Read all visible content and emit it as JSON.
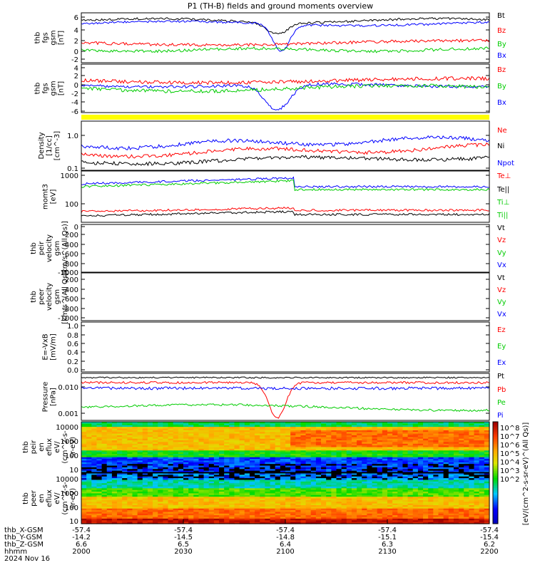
{
  "title": "P1 (TH-B) fields and ground moments overview",
  "panels": [
    {
      "ylabel": [
        "thb",
        "fgs",
        "gsm",
        "[nT]"
      ],
      "ticks": [
        "6",
        "4",
        "2",
        "0",
        "-2"
      ],
      "legend": [
        {
          "text": "Bt",
          "color": "#000000"
        },
        {
          "text": "Bz",
          "color": "#ff0000"
        },
        {
          "text": "By",
          "color": "#00cc00"
        },
        {
          "text": "Bx",
          "color": "#0000ff"
        }
      ]
    },
    {
      "ylabel": [
        "thb",
        "fgs",
        "gsm",
        "[nT]"
      ],
      "ticks": [
        "4",
        "2",
        "0",
        "-2",
        "-4",
        "-6"
      ],
      "legend": [
        {
          "text": "Bz",
          "color": "#ff0000"
        },
        {
          "text": "By",
          "color": "#00cc00"
        },
        {
          "text": "Bx",
          "color": "#0000ff"
        }
      ]
    },
    {
      "ylabel": [
        "Density",
        "[1/cc]",
        "[cm^-3]"
      ],
      "ticks": [
        "1.0",
        "0.1"
      ],
      "legend": [
        {
          "text": "Ne",
          "color": "#ff0000"
        },
        {
          "text": "Ni",
          "color": "#000000"
        },
        {
          "text": "Npot",
          "color": "#0000ff"
        }
      ]
    },
    {
      "ylabel": [
        "momt3",
        "[eV]"
      ],
      "ticks": [
        "1000",
        "100"
      ],
      "legend": [
        {
          "text": "Te⊥",
          "color": "#ff0000"
        },
        {
          "text": "Te||",
          "color": "#000000"
        },
        {
          "text": "Ti⊥",
          "color": "#00cc00"
        },
        {
          "text": "Ti||",
          "color": "#00cc00"
        }
      ]
    },
    {
      "ylabel": [
        "thb",
        "peir",
        "velocity",
        "gsm",
        "[km/s^(All Qs)]"
      ],
      "ticks": [
        "0",
        "-200",
        "-400",
        "-600",
        "-800",
        "-1000",
        "-1200",
        "-1400"
      ],
      "legend": [
        {
          "text": "Vt",
          "color": "#000000"
        },
        {
          "text": "Vz",
          "color": "#ff0000"
        },
        {
          "text": "Vy",
          "color": "#00cc00"
        },
        {
          "text": "Vx",
          "color": "#0000ff"
        }
      ]
    },
    {
      "ylabel": [
        "thb",
        "peer",
        "velocity",
        "gsm",
        "[km/s^(All Qs)]"
      ],
      "ticks": [
        "-200",
        "-400",
        "-600",
        "-800",
        "-1000",
        "-1200",
        "-1400"
      ],
      "legend": [
        {
          "text": "Vt",
          "color": "#000000"
        },
        {
          "text": "Vz",
          "color": "#ff0000"
        },
        {
          "text": "Vy",
          "color": "#00cc00"
        },
        {
          "text": "Vx",
          "color": "#0000ff"
        }
      ]
    },
    {
      "ylabel": [
        "E=-VxB",
        "[mV/m]"
      ],
      "ticks": [
        "1.0",
        "0.8",
        "0.6",
        "0.4",
        "0.2",
        "0.0"
      ],
      "legend": [
        {
          "text": "Ez",
          "color": "#ff0000"
        },
        {
          "text": "Ey",
          "color": "#00cc00"
        },
        {
          "text": "Ex",
          "color": "#0000ff"
        }
      ]
    },
    {
      "ylabel": [
        "Pressure",
        "[nPa]"
      ],
      "ticks": [
        "0.010",
        "0.001"
      ],
      "legend": [
        {
          "text": "Pt",
          "color": "#000000"
        },
        {
          "text": "Pb",
          "color": "#ff0000"
        },
        {
          "text": "Pe",
          "color": "#00cc00"
        },
        {
          "text": "Pi",
          "color": "#0000ff"
        }
      ]
    },
    {
      "ylabel": [
        "thb",
        "peir",
        "en",
        "eflux",
        "eV/",
        "(cm^2-s-",
        "sr-eV)"
      ],
      "ticks": [
        "10000",
        "1000",
        "100",
        "10"
      ]
    },
    {
      "ylabel": [
        "thb",
        "peer",
        "en",
        "eflux",
        "eV/",
        "(cm^2-s-",
        "sr-eV)"
      ],
      "ticks": [
        "10000",
        "1000",
        "100",
        "10"
      ]
    }
  ],
  "colorbar": {
    "ticks": [
      "10^8",
      "10^7",
      "10^6",
      "10^5",
      "10^4",
      "10^3",
      "10^2"
    ],
    "label": "[eV/(cm^2-s-sr-eV)^(All Qs)]"
  },
  "xaxis": {
    "row_labels": [
      "thb_X-GSM",
      "thb_Y-GSM",
      "thb_Z-GSM",
      "hhmm",
      "2024 Nov 16"
    ],
    "columns": [
      {
        "x": "-57.4",
        "y": "-14.2",
        "z": "6.6",
        "t": "2000"
      },
      {
        "x": "-57.4",
        "y": "-14.5",
        "z": "6.5",
        "t": "2030"
      },
      {
        "x": "-57.4",
        "y": "-14.8",
        "z": "6.4",
        "t": "2100"
      },
      {
        "x": "-57.4",
        "y": "-15.1",
        "z": "6.3",
        "t": "2130"
      },
      {
        "x": "-57.4",
        "y": "-15.4",
        "z": "6.2",
        "t": "2200"
      }
    ]
  },
  "chart_data": {
    "type": "line",
    "title": "P1 (TH-B) fields and ground moments overview",
    "x_unit": "hhmm",
    "x": [
      "2000",
      "2030",
      "2100",
      "2130",
      "2200"
    ],
    "series": [
      {
        "panel": "fgs",
        "name": "Bt",
        "values": [
          5.5,
          6.0,
          3.5,
          6.2,
          6.0
        ]
      },
      {
        "panel": "fgs",
        "name": "Bz",
        "values": [
          2.0,
          1.5,
          1.0,
          1.8,
          2.5
        ]
      },
      {
        "panel": "fgs",
        "name": "By",
        "values": [
          0.5,
          0.0,
          0.2,
          -0.5,
          0.0
        ]
      },
      {
        "panel": "fgs",
        "name": "Bx",
        "values": [
          5.0,
          5.5,
          -0.5,
          5.5,
          4.5
        ]
      },
      {
        "panel": "fgs2",
        "name": "Bx",
        "values": [
          0.5,
          0.0,
          -6.0,
          0.5,
          0.8
        ]
      },
      {
        "panel": "fgs2",
        "name": "By",
        "values": [
          -0.2,
          -1.5,
          -0.5,
          -1.5,
          -2.0
        ]
      },
      {
        "panel": "fgs2",
        "name": "Bz",
        "values": [
          1.0,
          1.5,
          1.0,
          1.5,
          2.0
        ]
      },
      {
        "panel": "density",
        "name": "Ne",
        "values": [
          0.25,
          0.28,
          0.3,
          0.5,
          0.45
        ]
      },
      {
        "panel": "density",
        "name": "Ni",
        "values": [
          0.15,
          0.17,
          0.2,
          0.3,
          0.28
        ]
      },
      {
        "panel": "density",
        "name": "Npot",
        "values": [
          0.35,
          0.38,
          0.4,
          0.8,
          0.7
        ]
      },
      {
        "panel": "temperature",
        "name": "Te||",
        "values": [
          700,
          800,
          950,
          450,
          500
        ]
      },
      {
        "panel": "temperature",
        "name": "Ti⊥",
        "values": [
          500,
          600,
          800,
          350,
          400
        ]
      },
      {
        "panel": "temperature",
        "name": "Te⊥",
        "values": [
          60,
          70,
          90,
          70,
          75
        ]
      },
      {
        "panel": "temperature",
        "name": "Ti||",
        "values": [
          45,
          55,
          80,
          50,
          55
        ]
      },
      {
        "panel": "pressure",
        "name": "Pt",
        "values": [
          0.017,
          0.017,
          0.016,
          0.017,
          0.017
        ]
      },
      {
        "panel": "pressure",
        "name": "Pb",
        "values": [
          0.01,
          0.012,
          0.0015,
          0.012,
          0.013
        ]
      },
      {
        "panel": "pressure",
        "name": "Pi",
        "values": [
          0.008,
          0.007,
          0.005,
          0.006,
          0.008
        ]
      },
      {
        "panel": "pressure",
        "name": "Pe",
        "values": [
          0.0025,
          0.003,
          0.0035,
          0.002,
          0.0022
        ]
      }
    ],
    "ylim": {
      "fgs": [
        -2,
        7
      ],
      "fgs2": [
        -7,
        4.5
      ],
      "density": [
        0.08,
        2
      ],
      "temperature": [
        30,
        1500
      ],
      "ion_velocity": [
        -1400,
        0
      ],
      "electron_velocity": [
        -1400,
        -100
      ],
      "efield": [
        0,
        1
      ],
      "pressure": [
        0.0007,
        0.02
      ]
    }
  }
}
